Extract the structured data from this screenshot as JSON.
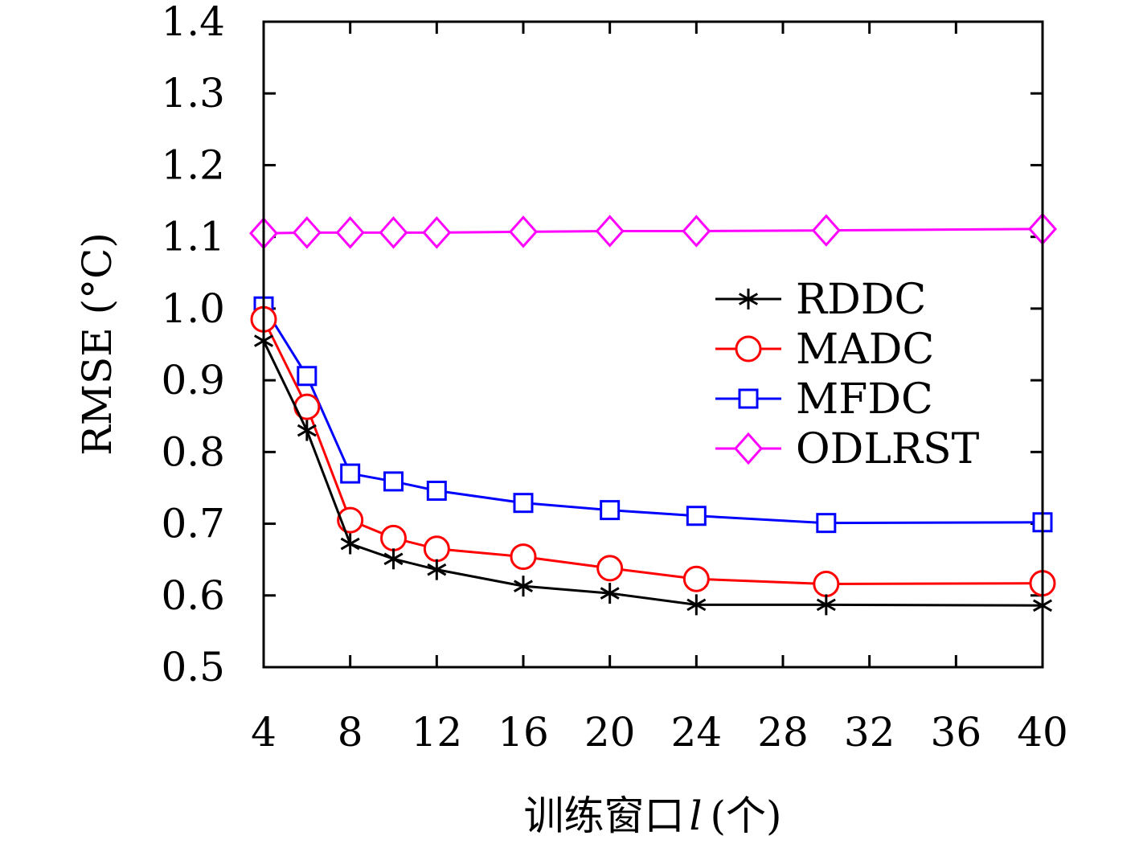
{
  "chart_data": {
    "type": "line",
    "x": [
      4,
      6,
      8,
      10,
      12,
      16,
      20,
      24,
      30,
      40
    ],
    "xlim": [
      4,
      40
    ],
    "ylim": [
      0.5,
      1.4
    ],
    "x_ticks": [
      4,
      8,
      12,
      16,
      20,
      24,
      28,
      32,
      36,
      40
    ],
    "y_ticks": [
      "0.5",
      "0.6",
      "0.7",
      "0.8",
      "0.9",
      "1.0",
      "1.1",
      "1.2",
      "1.3",
      "1.4"
    ],
    "xlabel": "训练窗口 l (个)",
    "xlabel_parts": {
      "prefix": "训练窗口",
      "var": "l",
      "suffix": "(个)"
    },
    "ylabel": "RMSE (°C)",
    "grid": false,
    "legend_position": "right",
    "series": [
      {
        "name": "RDDC",
        "color": "#000000",
        "marker": "asterisk",
        "values": [
          0.955,
          0.83,
          0.672,
          0.651,
          0.636,
          0.613,
          0.603,
          0.587,
          0.587,
          0.586
        ]
      },
      {
        "name": "MADC",
        "color": "#ff0000",
        "marker": "circle",
        "values": [
          0.985,
          0.863,
          0.705,
          0.68,
          0.665,
          0.654,
          0.638,
          0.623,
          0.616,
          0.617
        ]
      },
      {
        "name": "MFDC",
        "color": "#0000ff",
        "marker": "square",
        "values": [
          1.003,
          0.906,
          0.77,
          0.759,
          0.746,
          0.729,
          0.719,
          0.711,
          0.701,
          0.702
        ]
      },
      {
        "name": "ODLRST",
        "color": "#ff00ff",
        "marker": "diamond",
        "values": [
          1.105,
          1.106,
          1.106,
          1.106,
          1.106,
          1.107,
          1.108,
          1.108,
          1.109,
          1.111
        ]
      }
    ]
  }
}
